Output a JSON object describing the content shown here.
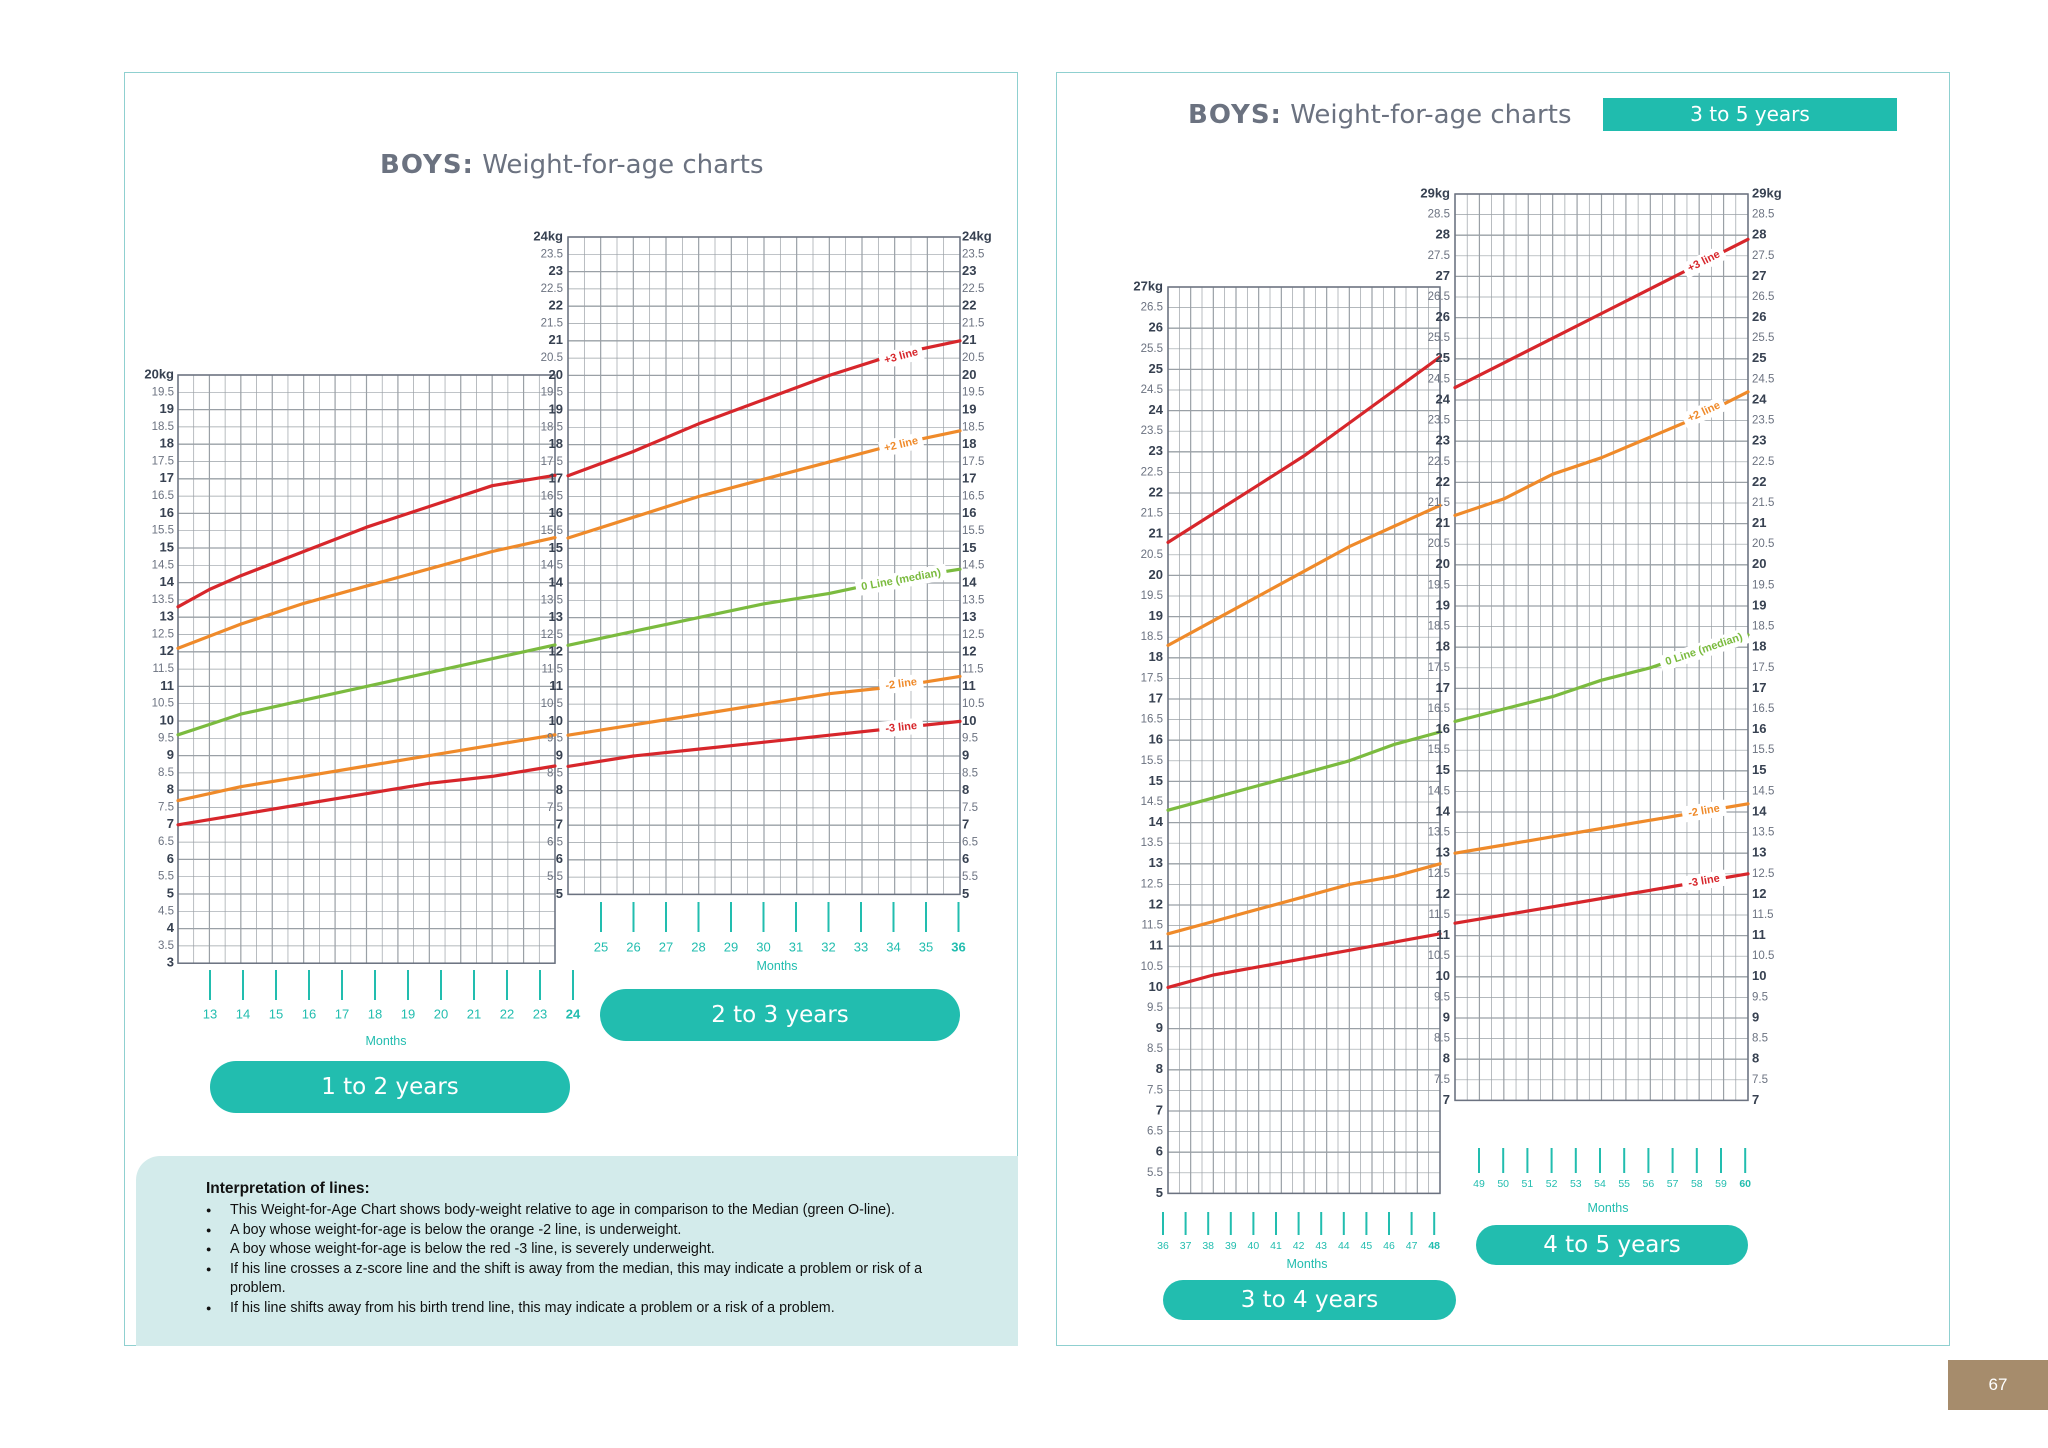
{
  "left_page": {
    "title_bold": "BOYS:",
    "title_rest": "Weight-for-age charts",
    "pill_1to2": "1 to 2 years",
    "pill_2to3": "2 to 3 years",
    "interpretation": {
      "title": "Interpretation of lines:",
      "items": [
        "This Weight-for-Age Chart shows body-weight relative to age in comparison to the Median (green O-line).",
        "A boy whose weight-for-age is below the orange -2 line, is underweight.",
        "A boy whose weight-for-age is below the red -3 line, is severely underweight.",
        "If his line crosses a z-score line and the shift is away from the median, this may indicate a problem or risk of a problem.",
        "If his line shifts away from his birth trend line, this may indicate a problem or a risk of a problem."
      ]
    }
  },
  "right_page": {
    "title_bold": "BOYS:",
    "title_rest": "Weight-for-age charts",
    "banner": "3 to 5 years",
    "pill_3to4": "3 to 4 years",
    "pill_4to5": "4 to 5 years"
  },
  "page_number": "67",
  "colors": {
    "plus3": "#d7262b",
    "plus2": "#ef8a2a",
    "median": "#7bbb3f",
    "minus2": "#ef8a2a",
    "minus3": "#d7262b",
    "accent": "#22bdaf",
    "grid": "#9aa0a6"
  },
  "line_labels": {
    "plus3": "+3 line",
    "plus2": "+2 line",
    "median": "0 Line (median)",
    "minus2": "-2 line",
    "minus3": "-3 line"
  },
  "chart_data": [
    {
      "type": "line",
      "id": "1to2",
      "xlabel": "Months",
      "x_ticks": [
        13,
        14,
        15,
        16,
        17,
        18,
        19,
        20,
        21,
        22,
        23,
        24
      ],
      "xlim": [
        12,
        24
      ],
      "ylim": [
        3,
        20
      ],
      "ylabel_top": "20kg",
      "series": [
        {
          "name": "+3 line",
          "x": [
            12,
            13,
            14,
            16,
            18,
            20,
            22,
            24
          ],
          "values": [
            13.3,
            13.8,
            14.2,
            14.9,
            15.6,
            16.2,
            16.8,
            17.1
          ]
        },
        {
          "name": "+2 line",
          "x": [
            12,
            14,
            16,
            18,
            20,
            22,
            24
          ],
          "values": [
            12.1,
            12.8,
            13.4,
            13.9,
            14.4,
            14.9,
            15.3
          ]
        },
        {
          "name": "0 Line (median)",
          "x": [
            12,
            13,
            14,
            15,
            16,
            18,
            20,
            22,
            24
          ],
          "values": [
            9.6,
            9.9,
            10.2,
            10.4,
            10.6,
            11.0,
            11.4,
            11.8,
            12.2
          ]
        },
        {
          "name": "-2 line",
          "x": [
            12,
            14,
            16,
            18,
            20,
            22,
            24
          ],
          "values": [
            7.7,
            8.1,
            8.4,
            8.7,
            9.0,
            9.3,
            9.6
          ]
        },
        {
          "name": "-3 line",
          "x": [
            12,
            14,
            16,
            18,
            20,
            22,
            24
          ],
          "values": [
            7.0,
            7.3,
            7.6,
            7.9,
            8.2,
            8.4,
            8.7
          ]
        }
      ]
    },
    {
      "type": "line",
      "id": "2to3",
      "xlabel": "Months",
      "x_ticks": [
        25,
        26,
        27,
        28,
        29,
        30,
        31,
        32,
        33,
        34,
        35,
        36
      ],
      "xlim": [
        24,
        36
      ],
      "ylim": [
        5,
        24
      ],
      "ylabel_top": "24kg",
      "series": [
        {
          "name": "+3 line",
          "x": [
            24,
            26,
            28,
            30,
            32,
            34,
            36
          ],
          "values": [
            17.1,
            17.8,
            18.6,
            19.3,
            20.0,
            20.6,
            21.0
          ]
        },
        {
          "name": "+2 line",
          "x": [
            24,
            26,
            28,
            30,
            32,
            34,
            36
          ],
          "values": [
            15.3,
            15.9,
            16.5,
            17.0,
            17.5,
            18.0,
            18.4
          ]
        },
        {
          "name": "0 Line (median)",
          "x": [
            24,
            26,
            28,
            30,
            32,
            34,
            36
          ],
          "values": [
            12.2,
            12.6,
            13.0,
            13.4,
            13.7,
            14.1,
            14.4
          ]
        },
        {
          "name": "-2 line",
          "x": [
            24,
            26,
            28,
            30,
            32,
            34,
            36
          ],
          "values": [
            9.6,
            9.9,
            10.2,
            10.5,
            10.8,
            11.0,
            11.3
          ]
        },
        {
          "name": "-3 line",
          "x": [
            24,
            26,
            28,
            30,
            32,
            34,
            36
          ],
          "values": [
            8.7,
            9.0,
            9.2,
            9.4,
            9.6,
            9.8,
            10.0
          ]
        }
      ]
    },
    {
      "type": "line",
      "id": "3to4",
      "xlabel": "Months",
      "x_ticks": [
        36,
        37,
        38,
        39,
        40,
        41,
        42,
        43,
        44,
        45,
        46,
        47,
        48
      ],
      "xlim": [
        36,
        48
      ],
      "ylim": [
        5,
        27
      ],
      "ylabel_top": "27kg",
      "series": [
        {
          "name": "+3 line",
          "x": [
            36,
            38,
            40,
            42,
            44,
            46,
            48
          ],
          "values": [
            20.8,
            21.5,
            22.2,
            22.9,
            23.7,
            24.5,
            25.3
          ]
        },
        {
          "name": "+2 line",
          "x": [
            36,
            38,
            40,
            42,
            44,
            46,
            48
          ],
          "values": [
            18.3,
            18.9,
            19.5,
            20.1,
            20.7,
            21.2,
            21.7
          ]
        },
        {
          "name": "0 Line (median)",
          "x": [
            36,
            38,
            40,
            42,
            44,
            46,
            48
          ],
          "values": [
            14.3,
            14.6,
            14.9,
            15.2,
            15.5,
            15.9,
            16.2
          ]
        },
        {
          "name": "-2 line",
          "x": [
            36,
            38,
            40,
            42,
            44,
            46,
            48
          ],
          "values": [
            11.3,
            11.6,
            11.9,
            12.2,
            12.5,
            12.7,
            13.0
          ]
        },
        {
          "name": "-3 line",
          "x": [
            36,
            38,
            40,
            42,
            44,
            46,
            48
          ],
          "values": [
            10.0,
            10.3,
            10.5,
            10.7,
            10.9,
            11.1,
            11.3
          ]
        }
      ]
    },
    {
      "type": "line",
      "id": "4to5",
      "xlabel": "Months",
      "x_ticks": [
        49,
        50,
        51,
        52,
        53,
        54,
        55,
        56,
        57,
        58,
        59,
        60
      ],
      "xlim": [
        48,
        60
      ],
      "ylim": [
        7,
        29
      ],
      "ylabel_top": "29kg",
      "series": [
        {
          "name": "+3 line",
          "x": [
            48,
            50,
            52,
            54,
            56,
            58,
            60
          ],
          "values": [
            24.3,
            24.9,
            25.5,
            26.1,
            26.7,
            27.3,
            27.9
          ]
        },
        {
          "name": "+2 line",
          "x": [
            48,
            50,
            52,
            54,
            56,
            58,
            60
          ],
          "values": [
            21.2,
            21.6,
            22.2,
            22.6,
            23.1,
            23.6,
            24.2
          ]
        },
        {
          "name": "0 Line (median)",
          "x": [
            48,
            50,
            52,
            54,
            56,
            58,
            60
          ],
          "values": [
            16.2,
            16.5,
            16.8,
            17.2,
            17.5,
            17.9,
            18.3
          ]
        },
        {
          "name": "-2 line",
          "x": [
            48,
            50,
            52,
            54,
            56,
            58,
            60
          ],
          "values": [
            13.0,
            13.2,
            13.4,
            13.6,
            13.8,
            14.0,
            14.2
          ]
        },
        {
          "name": "-3 line",
          "x": [
            48,
            50,
            52,
            54,
            56,
            58,
            60
          ],
          "values": [
            11.3,
            11.5,
            11.7,
            11.9,
            12.1,
            12.3,
            12.5
          ]
        }
      ]
    }
  ]
}
